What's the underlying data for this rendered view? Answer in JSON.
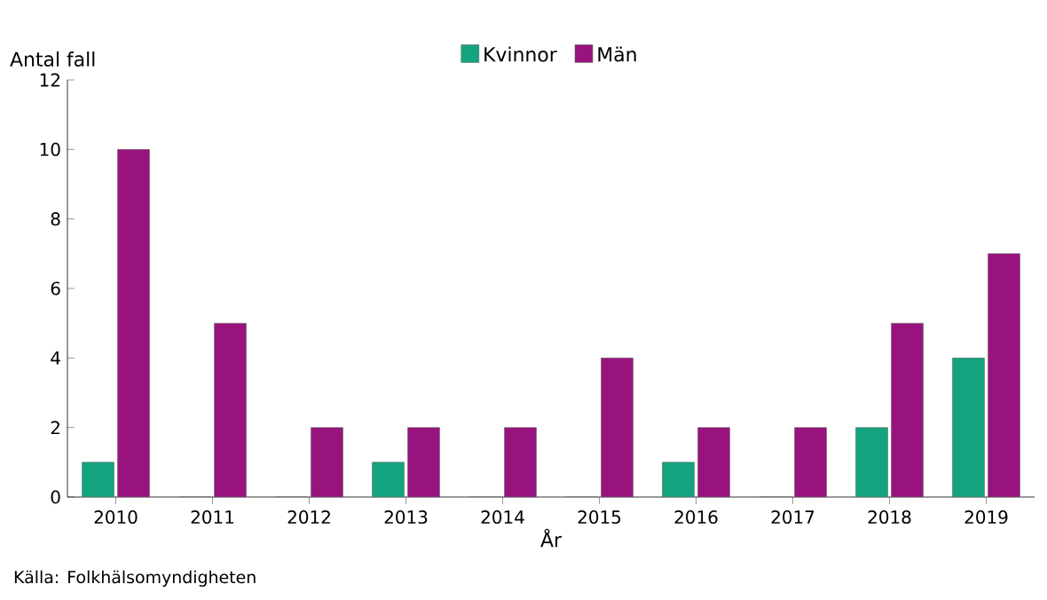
{
  "chart_data": {
    "type": "bar",
    "ylabel": "Antal fall",
    "xlabel": "År",
    "categories": [
      "2010",
      "2011",
      "2012",
      "2013",
      "2014",
      "2015",
      "2016",
      "2017",
      "2018",
      "2019"
    ],
    "series": [
      {
        "name": "Kvinnor",
        "color": "#13a37f",
        "values": [
          1,
          0,
          0,
          1,
          0,
          0,
          1,
          0,
          2,
          4
        ]
      },
      {
        "name": "Män",
        "color": "#99137f",
        "values": [
          10,
          5,
          2,
          2,
          2,
          4,
          2,
          2,
          5,
          7
        ]
      }
    ],
    "ylim": [
      0,
      12
    ],
    "yticks": [
      0,
      2,
      4,
      6,
      8,
      10,
      12
    ],
    "legend": "top",
    "grid": false,
    "annotations": [
      "Källa: Folkhälsomyndigheten"
    ]
  }
}
